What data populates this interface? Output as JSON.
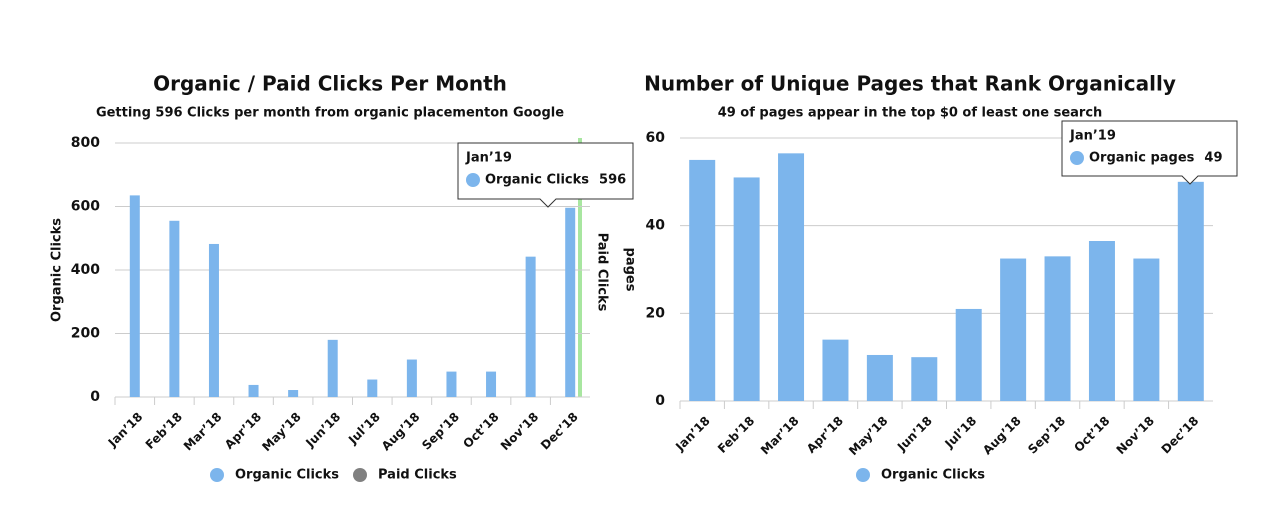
{
  "chart_data": [
    {
      "type": "bar",
      "title": "Organic / Paid Clicks Per Month",
      "subtitle": "Getting 596 Clicks per month from organic placementon Google",
      "ylabel": "Organic Clicks",
      "y2label": "Paid Clicks",
      "categories": [
        "Jan’18",
        "Feb’18",
        "Mar’18",
        "Apr’18",
        "May’18",
        "Jun’18",
        "Jul’18",
        "Aug’18",
        "Sep’18",
        "Oct’18",
        "Nov’18",
        "Dec’18"
      ],
      "series": [
        {
          "name": "Organic Clicks",
          "color": "#7cb5ec",
          "values": [
            635,
            555,
            482,
            38,
            22,
            180,
            55,
            118,
            80,
            80,
            442,
            596
          ]
        },
        {
          "name": "Paid Clicks",
          "color": "#808080",
          "values": [
            null,
            null,
            null,
            null,
            null,
            null,
            null,
            null,
            null,
            null,
            null,
            null
          ]
        }
      ],
      "ylim": [
        0,
        800
      ],
      "yticks": [
        0,
        200,
        400,
        600,
        800
      ],
      "grid": true,
      "tooltip": {
        "title": "Jan’19",
        "label": "Organic Clicks",
        "value": 596
      }
    },
    {
      "type": "bar",
      "title": "Number of Unique Pages that Rank Organically",
      "subtitle": "49 of pages appear in the top $0 of least one search",
      "ylabel": "pages",
      "categories": [
        "Jan’18",
        "Feb’18",
        "Mar’18",
        "Apr’18",
        "May’18",
        "Jun’18",
        "Jul’18",
        "Aug’18",
        "Sep’18",
        "Oct’18",
        "Nov’18",
        "Dec’18"
      ],
      "series": [
        {
          "name": "Organic Clicks",
          "color": "#7cb5ec",
          "values": [
            55,
            51,
            56.5,
            14,
            10.5,
            10,
            21,
            32.5,
            33,
            36.5,
            32.5,
            50
          ]
        }
      ],
      "ylim": [
        0,
        60
      ],
      "yticks": [
        0,
        20,
        40,
        60
      ],
      "grid": true,
      "tooltip": {
        "title": "Jan’19",
        "label": "Organic pages",
        "value": 49
      }
    }
  ]
}
